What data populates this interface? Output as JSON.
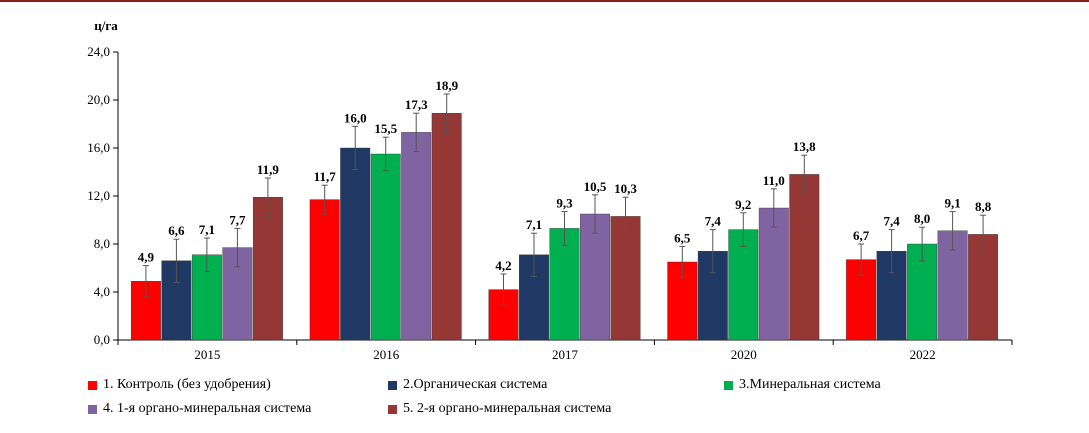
{
  "chart_data": {
    "type": "bar",
    "ylabel": "ц/га",
    "ylim": [
      0,
      24
    ],
    "yticks": [
      "0,0",
      "4,0",
      "8,0",
      "12,0",
      "16,0",
      "20,0",
      "24,0"
    ],
    "categories": [
      "2015",
      "2016",
      "2017",
      "2020",
      "2022"
    ],
    "series": [
      {
        "name": "1. Контроль (без удобрения)",
        "color": "#ff0000",
        "values": [
          4.9,
          11.7,
          4.2,
          6.5,
          6.7
        ],
        "labels": [
          "4,9",
          "11,7",
          "4,2",
          "6,5",
          "6,7"
        ],
        "errors": [
          1.3,
          1.2,
          1.3,
          1.3,
          1.3
        ]
      },
      {
        "name": "2.Органическая система",
        "color": "#1f3864",
        "values": [
          6.6,
          16.0,
          7.1,
          7.4,
          7.4
        ],
        "labels": [
          "6,6",
          "16,0",
          "7,1",
          "7,4",
          "7,4"
        ],
        "errors": [
          1.8,
          1.8,
          1.8,
          1.8,
          1.8
        ]
      },
      {
        "name": "3.Минеральная система",
        "color": "#00b050",
        "values": [
          7.1,
          15.5,
          9.3,
          9.2,
          8.0
        ],
        "labels": [
          "7,1",
          "15,5",
          "9,3",
          "9,2",
          "8,0"
        ],
        "errors": [
          1.4,
          1.4,
          1.4,
          1.4,
          1.4
        ]
      },
      {
        "name": "4. 1-я органо-минеральная система",
        "color": "#8064a2",
        "values": [
          7.7,
          17.3,
          10.5,
          11.0,
          9.1
        ],
        "labels": [
          "7,7",
          "17,3",
          "10,5",
          "11,0",
          "9,1"
        ],
        "errors": [
          1.6,
          1.6,
          1.6,
          1.6,
          1.6
        ]
      },
      {
        "name": "5. 2-я органо-минеральная система",
        "color": "#953735",
        "values": [
          11.9,
          18.9,
          10.3,
          13.8,
          8.8
        ],
        "labels": [
          "11,9",
          "18,9",
          "10,3",
          "13,8",
          "8,8"
        ],
        "errors": [
          1.6,
          1.6,
          1.6,
          1.6,
          1.6
        ]
      }
    ]
  }
}
